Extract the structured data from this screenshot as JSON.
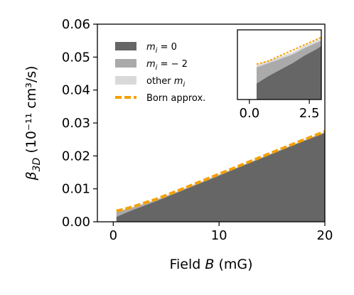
{
  "chart_data": [
    {
      "type": "area",
      "xlabel": "Field B (mG)",
      "ylabel": "β3D (10⁻¹¹ cm³/s)",
      "xlim": [
        -1.5,
        20
      ],
      "ylim": [
        0,
        0.06
      ],
      "xticks": [
        0,
        10,
        20
      ],
      "xtick_labels": [
        "0",
        "10",
        "20"
      ],
      "yticks": [
        0,
        0.01,
        0.02,
        0.03,
        0.04,
        0.05,
        0.06
      ],
      "ytick_labels": [
        "0.00",
        "0.01",
        "0.02",
        "0.03",
        "0.04",
        "0.05",
        "0.06"
      ],
      "grid": false,
      "stacked": true,
      "legend": {
        "placement": "upper-left",
        "entries": [
          "m_i = 0",
          "m_i = −2",
          "other m_i",
          "Born approx."
        ]
      },
      "x": [
        0.3,
        1,
        2,
        3,
        4,
        6,
        8,
        10,
        12,
        14,
        16,
        18,
        20
      ],
      "series": [
        {
          "name": "m_i = 0",
          "kind": "area",
          "color": "#666666",
          "values": [
            0.0015,
            0.0025,
            0.0038,
            0.005,
            0.0062,
            0.0088,
            0.0114,
            0.014,
            0.0167,
            0.0193,
            0.0219,
            0.0245,
            0.027
          ]
        },
        {
          "name": "m_i = −2",
          "kind": "area",
          "color": "#aaaaaa",
          "values": [
            0.0015,
            0.0011,
            0.0007,
            0.0005,
            0.0004,
            0.0003,
            0.0003,
            0.0003,
            0.0002,
            0.0002,
            0.0002,
            0.0002,
            0.0002
          ]
        },
        {
          "name": "other m_i",
          "kind": "area",
          "color": "#d9d9d9",
          "values": [
            0.0002,
            0.0002,
            0.0002,
            0.0002,
            0.0001,
            0.0001,
            0.0001,
            0.0001,
            0.0001,
            0.0001,
            0.0001,
            0.0001,
            0.0001
          ]
        },
        {
          "name": "Born approx.",
          "kind": "line",
          "style": "dashed",
          "color": "#f5a000",
          "values": [
            0.0033,
            0.0038,
            0.0047,
            0.0058,
            0.0068,
            0.0093,
            0.0119,
            0.0145,
            0.0171,
            0.0197,
            0.0223,
            0.0249,
            0.0274
          ]
        }
      ]
    },
    {
      "type": "area",
      "role": "inset",
      "xlim": [
        -0.5,
        3
      ],
      "xticks": [
        0,
        2.5
      ],
      "xtick_labels": [
        "0.0",
        "2.5"
      ],
      "stacked": true,
      "x": [
        0.3,
        0.8,
        1.3,
        1.8,
        2.3,
        2.8,
        3.0
      ],
      "series": [
        {
          "name": "m_i = 0",
          "kind": "area",
          "color": "#666666",
          "values": [
            0.0015,
            0.0022,
            0.0028,
            0.0034,
            0.0041,
            0.0047,
            0.005
          ]
        },
        {
          "name": "m_i = −2",
          "kind": "area",
          "color": "#aaaaaa",
          "values": [
            0.0015,
            0.0012,
            0.001,
            0.0008,
            0.0007,
            0.0006,
            0.0005
          ]
        },
        {
          "name": "other m_i",
          "kind": "area",
          "color": "#d9d9d9",
          "values": [
            0.0002,
            0.0002,
            0.0002,
            0.0002,
            0.0002,
            0.0002,
            0.0002
          ]
        },
        {
          "name": "Born approx.",
          "kind": "line",
          "style": "dotted",
          "color": "#f5a000",
          "values": [
            0.0033,
            0.0036,
            0.0041,
            0.0046,
            0.0051,
            0.0056,
            0.0058
          ]
        }
      ]
    }
  ]
}
